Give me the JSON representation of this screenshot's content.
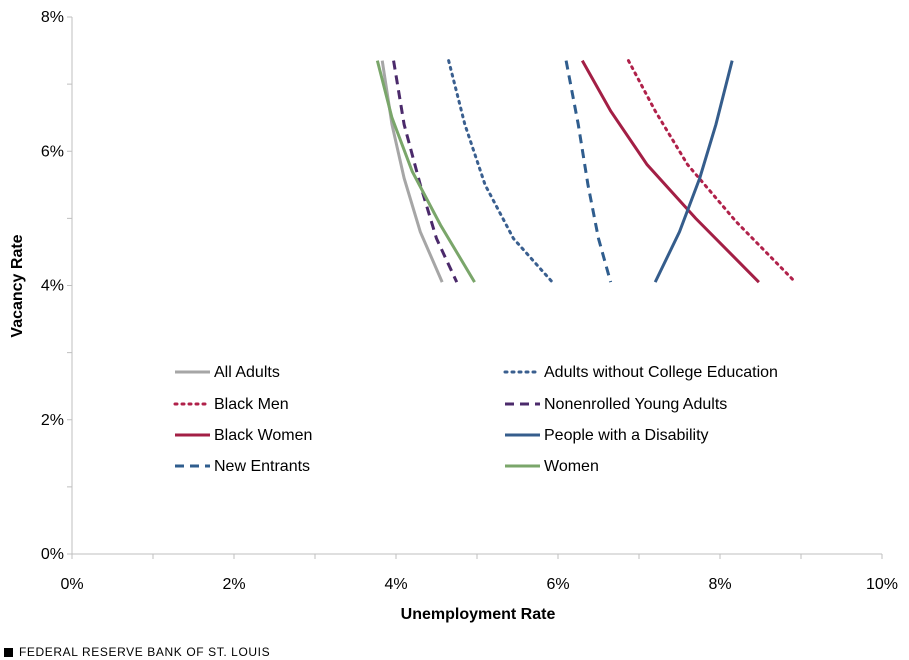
{
  "chart_data": {
    "type": "line",
    "title": "",
    "xlabel": "Unemployment Rate",
    "ylabel": "Vacancy Rate",
    "xlim": [
      0,
      10
    ],
    "ylim": [
      0,
      8
    ],
    "x_ticks": [
      "0%",
      "2%",
      "4%",
      "6%",
      "8%",
      "10%"
    ],
    "y_ticks": [
      "0%",
      "2%",
      "4%",
      "6%",
      "8%"
    ],
    "legend_placement": "lower-middle",
    "series": [
      {
        "name": "All Adults",
        "color": "#a6a6a6",
        "style": "solid",
        "points": [
          [
            3.83,
            7.35
          ],
          [
            3.95,
            6.4
          ],
          [
            4.1,
            5.6
          ],
          [
            4.3,
            4.8
          ],
          [
            4.57,
            4.05
          ]
        ]
      },
      {
        "name": "Adults without College Education",
        "color": "#3a5f8f",
        "style": "dotted",
        "points": [
          [
            4.65,
            7.35
          ],
          [
            4.85,
            6.4
          ],
          [
            5.1,
            5.5
          ],
          [
            5.45,
            4.7
          ],
          [
            5.93,
            4.05
          ]
        ]
      },
      {
        "name": "Black Men",
        "color": "#b0214a",
        "style": "dotted",
        "points": [
          [
            6.87,
            7.35
          ],
          [
            7.2,
            6.6
          ],
          [
            7.6,
            5.8
          ],
          [
            8.2,
            4.95
          ],
          [
            8.93,
            4.05
          ]
        ]
      },
      {
        "name": "Nonenrolled Young Adults",
        "color": "#4b2a6b",
        "style": "dashed",
        "points": [
          [
            3.97,
            7.35
          ],
          [
            4.1,
            6.4
          ],
          [
            4.3,
            5.5
          ],
          [
            4.5,
            4.7
          ],
          [
            4.75,
            4.05
          ]
        ]
      },
      {
        "name": "Black Women",
        "color": "#a31f45",
        "style": "solid",
        "points": [
          [
            6.3,
            7.35
          ],
          [
            6.65,
            6.6
          ],
          [
            7.1,
            5.8
          ],
          [
            7.7,
            5.0
          ],
          [
            8.48,
            4.05
          ]
        ]
      },
      {
        "name": "People with a Disability",
        "color": "#355d8c",
        "style": "solid",
        "points": [
          [
            7.2,
            4.05
          ],
          [
            7.5,
            4.8
          ],
          [
            7.75,
            5.6
          ],
          [
            7.95,
            6.4
          ],
          [
            8.15,
            7.35
          ]
        ]
      },
      {
        "name": "New Entrants",
        "color": "#2f5d8e",
        "style": "dashed",
        "points": [
          [
            6.1,
            7.35
          ],
          [
            6.25,
            6.4
          ],
          [
            6.37,
            5.5
          ],
          [
            6.5,
            4.7
          ],
          [
            6.65,
            4.05
          ]
        ]
      },
      {
        "name": "Women",
        "color": "#7aa66a",
        "style": "solid",
        "points": [
          [
            3.77,
            7.35
          ],
          [
            3.95,
            6.5
          ],
          [
            4.2,
            5.7
          ],
          [
            4.55,
            4.9
          ],
          [
            4.97,
            4.05
          ]
        ]
      }
    ]
  },
  "footer": {
    "text": "FEDERAL RESERVE BANK OF ST. LOUIS"
  }
}
